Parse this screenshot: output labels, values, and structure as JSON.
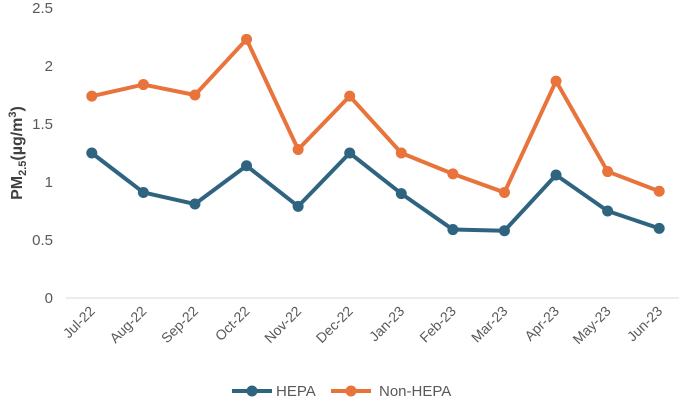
{
  "chart_data": {
    "type": "line",
    "title": "",
    "xlabel": "",
    "ylabel": {
      "main": "PM",
      "sub": "2.5",
      "unit_open": "(µg/m",
      "sup": "3",
      "unit_close": ")"
    },
    "ylim": [
      0,
      2.5
    ],
    "yticks": [
      "0",
      "0.5",
      "1",
      "1.5",
      "2",
      "2.5"
    ],
    "categories": [
      "Jul-22",
      "Aug-22",
      "Sep-22",
      "Oct-22",
      "Nov-22",
      "Dec-22",
      "Jan-23",
      "Feb-23",
      "Mar-23",
      "Apr-23",
      "May-23",
      "Jun-23"
    ],
    "series": [
      {
        "name": "HEPA",
        "color": "#2e6480",
        "values": [
          1.25,
          0.91,
          0.81,
          1.14,
          0.79,
          1.25,
          0.9,
          0.59,
          0.58,
          1.06,
          0.75,
          0.6
        ]
      },
      {
        "name": "Non-HEPA",
        "color": "#e8743b",
        "values": [
          1.74,
          1.84,
          1.75,
          2.23,
          1.28,
          1.74,
          1.25,
          1.07,
          0.91,
          1.87,
          1.09,
          0.92
        ]
      }
    ],
    "grid": false,
    "legend_position": "bottom"
  }
}
